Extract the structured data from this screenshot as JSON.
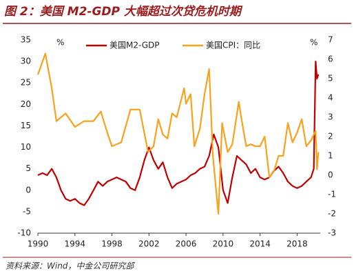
{
  "chart_data": {
    "type": "line",
    "title": "图 2：美国 M2-GDP 大幅超过次贷危机时期",
    "source": "资料来源：Wind，中金公司研究部",
    "y_unit": "%",
    "y2_unit": "%",
    "xlim": [
      1990,
      2020.5
    ],
    "xticks": [
      1990,
      1994,
      1998,
      2002,
      2006,
      2010,
      2014,
      2018
    ],
    "ylim": [
      -10,
      35
    ],
    "yticks": [
      -10,
      -5,
      0,
      5,
      10,
      15,
      20,
      25,
      30,
      35
    ],
    "y2lim": [
      -3,
      7
    ],
    "y2ticks": [
      -3,
      -2,
      -1,
      0,
      1,
      2,
      3,
      4,
      5,
      6,
      7
    ],
    "series": [
      {
        "name": "美国M2-GDP",
        "color": "#c00000",
        "axis": "y",
        "x": [
          1990,
          1990.5,
          1991,
          1991.5,
          1992,
          1992.5,
          1993,
          1993.5,
          1994,
          1994.5,
          1995,
          1995.5,
          1996,
          1996.5,
          1997,
          1997.5,
          1998,
          1998.5,
          1999,
          1999.5,
          2000,
          2000.5,
          2001,
          2001.5,
          2002,
          2002.5,
          2003,
          2003.5,
          2004,
          2004.5,
          2005,
          2005.5,
          2006,
          2006.5,
          2007,
          2007.5,
          2008,
          2008.5,
          2009,
          2009.5,
          2010,
          2010.5,
          2011,
          2011.5,
          2012,
          2012.5,
          2013,
          2013.5,
          2014,
          2014.5,
          2015,
          2015.5,
          2016,
          2016.5,
          2017,
          2017.5,
          2018,
          2018.5,
          2019,
          2019.5,
          2019.8,
          2020,
          2020.15,
          2020.3
        ],
        "values": [
          3.5,
          4,
          3.5,
          5,
          3,
          0,
          -2,
          -2.5,
          -2,
          -3,
          -3.5,
          -2,
          0,
          2,
          1,
          2,
          2.5,
          3,
          2.5,
          2,
          0.5,
          0,
          3,
          7,
          10,
          7,
          5,
          6.5,
          3,
          0.5,
          1.5,
          2,
          2.5,
          3.5,
          4,
          5,
          5.5,
          8,
          13,
          10,
          0,
          -3,
          3,
          8,
          7,
          6,
          4,
          5,
          3,
          2.5,
          3,
          4.5,
          5.5,
          4,
          2,
          1,
          0.5,
          1,
          2,
          3,
          5,
          30,
          26,
          27
        ]
      },
      {
        "name": "美国CPI：同比",
        "color": "#f9a11b",
        "axis": "y2",
        "x": [
          1990,
          1990.8,
          1991.5,
          1992,
          1993,
          1994,
          1995,
          1996,
          1996.8,
          1997.5,
          1998,
          1999,
          2000,
          2001,
          2001.9,
          2002.5,
          2003,
          2003.5,
          2004,
          2004.5,
          2005,
          2005.8,
          2006,
          2006.5,
          2006.9,
          2007.5,
          2008,
          2008.5,
          2008.9,
          2009.5,
          2009.9,
          2010.5,
          2011,
          2011.7,
          2012,
          2012.5,
          2013,
          2013.5,
          2014,
          2014.5,
          2015,
          2015.5,
          2016,
          2016.5,
          2017,
          2017.5,
          2018,
          2018.5,
          2019,
          2019.5,
          2020,
          2020.15,
          2020.3
        ],
        "values": [
          5.2,
          6.3,
          4.5,
          2.8,
          3.2,
          2.5,
          2.8,
          2.8,
          3.3,
          2.2,
          1.5,
          1.7,
          3.4,
          3.4,
          1.2,
          1.5,
          2.9,
          2.1,
          1.9,
          3.2,
          3,
          4.5,
          3.7,
          4.2,
          1.5,
          2.4,
          4.2,
          5.5,
          1,
          -2,
          2.7,
          1.2,
          1.6,
          3.8,
          2.9,
          1.5,
          1.6,
          1.5,
          1.5,
          2,
          -0.1,
          0.2,
          1,
          1,
          2.7,
          1.7,
          2.2,
          2.9,
          1.5,
          1.8,
          2.3,
          0.3,
          1.2
        ]
      }
    ]
  }
}
